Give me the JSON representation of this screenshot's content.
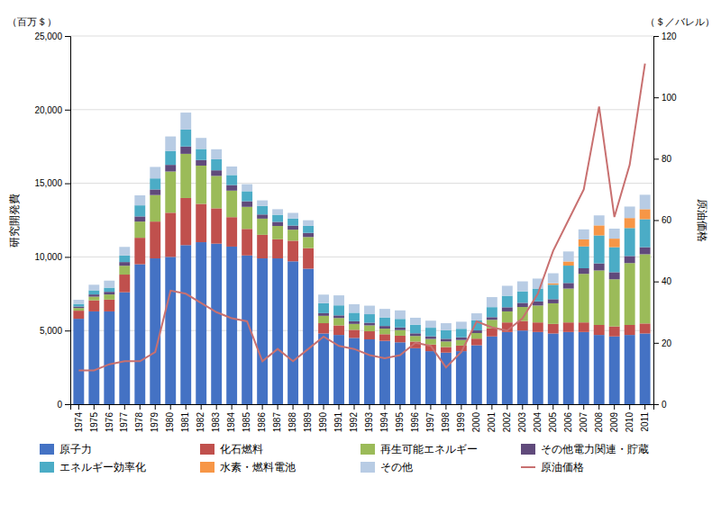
{
  "chart_data": {
    "type": "bar",
    "stacked": true,
    "grid": true,
    "legend": "bottom",
    "ylabel": "研究開発費",
    "y2label": "原油価格",
    "annotations": [
      {
        "text": "（百万＄）",
        "axis": "y"
      },
      {
        "text": "（＄／バレル）",
        "axis": "y2"
      }
    ],
    "categories": [
      1974,
      1975,
      1976,
      1977,
      1978,
      1979,
      1980,
      1981,
      1982,
      1983,
      1984,
      1985,
      1986,
      1987,
      1988,
      1989,
      1990,
      1991,
      1992,
      1993,
      1994,
      1995,
      1996,
      1997,
      1998,
      1999,
      2000,
      2001,
      2002,
      2003,
      2004,
      2005,
      2006,
      2007,
      2008,
      2009,
      2010,
      2011
    ],
    "ylim": [
      0,
      25000
    ],
    "yticks": [
      0,
      {
        "value": 5000,
        "label": "5,000"
      },
      {
        "value": 10000,
        "label": "10,000"
      },
      {
        "value": 15000,
        "label": "15,000"
      },
      {
        "value": 20000,
        "label": "20,000"
      },
      {
        "value": 25000,
        "label": "25,000"
      }
    ],
    "y2lim": [
      0,
      120
    ],
    "y2ticks": [
      0,
      20,
      40,
      60,
      80,
      100,
      120
    ],
    "series": [
      {
        "name": "原子力",
        "color": "#4472C4",
        "type": "bar",
        "values": [
          5800,
          6300,
          6300,
          7600,
          9500,
          9900,
          10000,
          10800,
          11000,
          10900,
          10700,
          10100,
          9900,
          9900,
          9700,
          9200,
          4800,
          4700,
          4500,
          4400,
          4300,
          4200,
          3800,
          3600,
          3500,
          3600,
          4000,
          4600,
          4900,
          5000,
          4900,
          4800,
          4900,
          4900,
          4700,
          4600,
          4700,
          4800
        ]
      },
      {
        "name": "化石燃料",
        "color": "#C0504D",
        "type": "bar",
        "values": [
          550,
          750,
          800,
          1200,
          1800,
          2500,
          3000,
          3200,
          2600,
          2400,
          2000,
          1800,
          1600,
          1300,
          1400,
          1400,
          700,
          650,
          550,
          550,
          450,
          450,
          450,
          450,
          380,
          380,
          450,
          550,
          650,
          650,
          650,
          650,
          650,
          650,
          680,
          680,
          680,
          680
        ]
      },
      {
        "name": "再生可能エネルギー",
        "color": "#9BBB59",
        "type": "bar",
        "values": [
          180,
          250,
          350,
          600,
          1100,
          1800,
          2800,
          3000,
          2600,
          2200,
          1800,
          1500,
          1100,
          900,
          750,
          750,
          500,
          500,
          400,
          400,
          380,
          380,
          380,
          380,
          380,
          380,
          380,
          580,
          750,
          950,
          1150,
          1400,
          2300,
          3300,
          3700,
          3200,
          4200,
          4700
        ]
      },
      {
        "name": "その他電力関連・貯蔵",
        "color": "#604A7B",
        "type": "bar",
        "values": [
          100,
          150,
          180,
          250,
          350,
          380,
          450,
          500,
          380,
          380,
          380,
          380,
          280,
          280,
          280,
          280,
          180,
          180,
          180,
          180,
          180,
          180,
          180,
          180,
          180,
          180,
          180,
          180,
          280,
          280,
          280,
          280,
          380,
          380,
          480,
          480,
          480,
          480
        ]
      },
      {
        "name": "エネルギー効率化",
        "color": "#4BACC6",
        "type": "bar",
        "values": [
          180,
          280,
          280,
          450,
          750,
          750,
          950,
          1150,
          750,
          750,
          680,
          680,
          580,
          480,
          480,
          480,
          680,
          680,
          580,
          580,
          580,
          580,
          580,
          580,
          580,
          580,
          680,
          680,
          780,
          780,
          870,
          980,
          1180,
          1480,
          1900,
          1700,
          1900,
          1900
        ]
      },
      {
        "name": "水素・燃料電池",
        "color": "#F79646",
        "type": "bar",
        "values": [
          0,
          0,
          0,
          0,
          0,
          0,
          0,
          0,
          0,
          0,
          0,
          0,
          0,
          0,
          0,
          0,
          0,
          0,
          0,
          0,
          0,
          0,
          0,
          0,
          0,
          0,
          0,
          0,
          0,
          0,
          0,
          100,
          280,
          480,
          680,
          580,
          680,
          680
        ]
      },
      {
        "name": "その他",
        "color": "#B8CCE4",
        "type": "bar",
        "values": [
          280,
          380,
          480,
          580,
          680,
          780,
          980,
          1150,
          750,
          680,
          580,
          480,
          380,
          380,
          380,
          380,
          580,
          680,
          580,
          580,
          580,
          580,
          480,
          480,
          480,
          480,
          480,
          680,
          680,
          680,
          680,
          680,
          680,
          680,
          680,
          680,
          780,
          980
        ]
      },
      {
        "name": "原油価格",
        "color": "#C87070",
        "type": "line",
        "axis": "y2",
        "values": [
          11,
          11,
          13,
          14,
          14,
          17,
          37,
          36,
          33,
          30,
          28,
          27,
          14,
          18,
          14,
          18,
          22,
          19,
          18,
          16,
          15,
          16,
          20,
          19,
          12,
          17,
          27,
          25,
          24,
          28,
          36,
          50,
          60,
          70,
          97,
          61,
          78,
          111
        ]
      }
    ]
  }
}
